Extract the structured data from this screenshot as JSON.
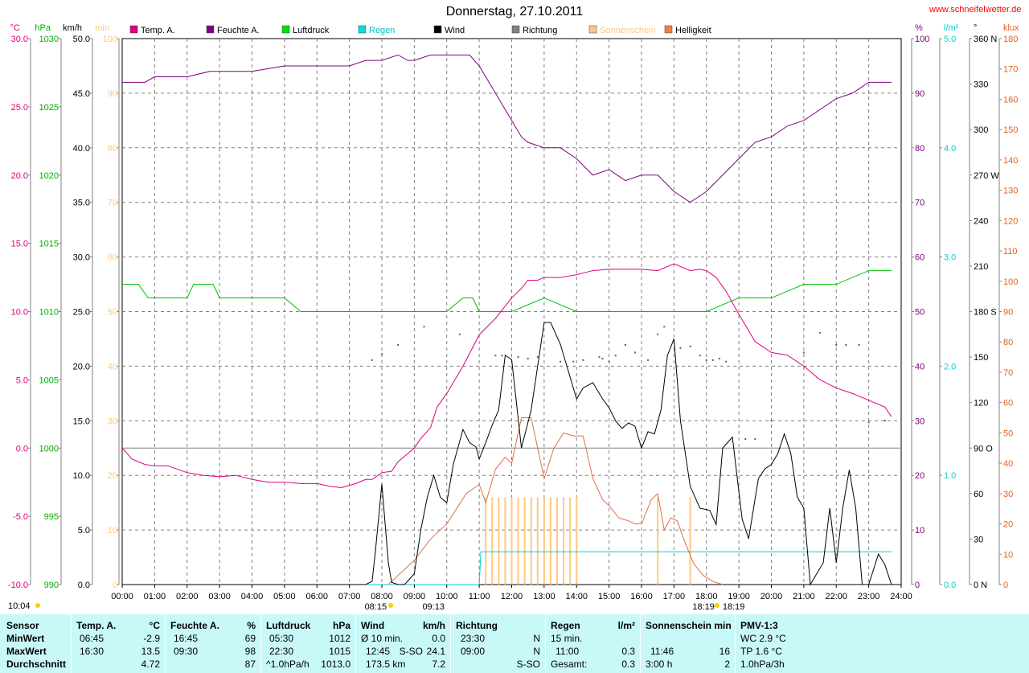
{
  "title": "Donnerstag, 27.10.2011",
  "site": "www.schneifelwetter.de",
  "bottom_left_time": "10:04",
  "chart_data": {
    "type": "line",
    "xlabel": "",
    "x_ticks": [
      "00:00",
      "01:00",
      "02:00",
      "03:00",
      "04:00",
      "05:00",
      "06:00",
      "07:00",
      "08:00",
      "09:00",
      "10:00",
      "11:00",
      "12:00",
      "13:00",
      "14:00",
      "15:00",
      "16:00",
      "17:00",
      "18:00",
      "19:00",
      "20:00",
      "21:00",
      "22:00",
      "23:00",
      "24:00"
    ],
    "sunrise": "08:15",
    "sunset": "18:19",
    "sun_marker_09": "09:13",
    "sun_marker_18": "18:19",
    "axes": {
      "temp": {
        "unit": "°C",
        "color": "#e00080",
        "range": [
          -10,
          30
        ],
        "ticks": [
          "30.0",
          "25.0",
          "20.0",
          "15.0",
          "10.0",
          "5.0",
          "0.0",
          "-5.0",
          "-10.0"
        ]
      },
      "pressure": {
        "unit": "hPa",
        "color": "#00b000",
        "range": [
          990,
          1030
        ],
        "ticks": [
          "1030",
          "1025",
          "1020",
          "1015",
          "1010",
          "1005",
          "1000",
          "995",
          "990"
        ]
      },
      "wind": {
        "unit": "km/h",
        "color": "#000000",
        "range": [
          0,
          50
        ],
        "ticks": [
          "50.0",
          "45.0",
          "40.0",
          "35.0",
          "30.0",
          "25.0",
          "20.0",
          "15.0",
          "10.0",
          "5.0",
          "0.0"
        ]
      },
      "sunshine": {
        "unit": "min",
        "color": "#ffc880",
        "range": [
          0,
          100
        ],
        "ticks": [
          "100",
          "90",
          "80",
          "70",
          "60",
          "50",
          "40",
          "30",
          "20",
          "10",
          "0"
        ]
      },
      "humidity": {
        "unit": "%",
        "color": "#800080",
        "range": [
          0,
          100
        ],
        "ticks": [
          "100",
          "90",
          "80",
          "70",
          "60",
          "50",
          "40",
          "30",
          "20",
          "10",
          "0"
        ]
      },
      "rain": {
        "unit": "l/m²",
        "color": "#00d0d0",
        "range": [
          0,
          5
        ],
        "ticks": [
          "5.0",
          "4.0",
          "3.0",
          "2.0",
          "1.0",
          "0.0"
        ]
      },
      "direction": {
        "unit": "°",
        "color": "#000000",
        "range": [
          0,
          360
        ],
        "ticks": [
          "360 N",
          "330",
          "300",
          "270 W",
          "240",
          "210",
          "180 S",
          "150",
          "120",
          "90 O",
          "60",
          "30",
          "0 N"
        ]
      },
      "light": {
        "unit": "klux",
        "color": "#e06020",
        "range": [
          0,
          180
        ],
        "ticks": [
          "180",
          "170",
          "160",
          "150",
          "140",
          "130",
          "120",
          "110",
          "100",
          "90",
          "80",
          "70",
          "60",
          "50",
          "40",
          "30",
          "20",
          "10",
          "0"
        ]
      }
    },
    "legend": [
      {
        "name": "Temp. A.",
        "color": "#e00080"
      },
      {
        "name": "Feuchte A.",
        "color": "#800080"
      },
      {
        "name": "Luftdruck",
        "color": "#00e000"
      },
      {
        "name": "Regen",
        "color": "#00e0e0"
      },
      {
        "name": "Wind",
        "color": "#000000"
      },
      {
        "name": "Richtung",
        "color": "#808080"
      },
      {
        "name": "Sonnenschein",
        "color": "#ffc880"
      },
      {
        "name": "Helligkeit",
        "color": "#f08050"
      }
    ],
    "series": {
      "temperature": {
        "x": [
          0,
          0.3,
          0.7,
          1,
          1.4,
          2,
          2.5,
          3,
          3.5,
          4,
          4.5,
          5,
          5.5,
          6,
          6.4,
          6.75,
          7.2,
          7.5,
          7.7,
          8,
          8.3,
          8.5,
          8.8,
          9,
          9.2,
          9.5,
          9.7,
          10,
          10.5,
          11,
          11.5,
          12,
          12.3,
          12.5,
          12.8,
          13,
          13.2,
          13.5,
          14,
          14.5,
          15,
          15.5,
          16,
          16.5,
          17,
          17.5,
          17.8,
          18,
          18.3,
          18.6,
          19,
          19.5,
          20,
          20.5,
          21,
          21.5,
          22,
          22.5,
          23,
          23.5,
          23.7
        ],
        "y": [
          0.0,
          -0.8,
          -1.2,
          -1.3,
          -1.3,
          -1.8,
          -2.0,
          -2.1,
          -2.0,
          -2.3,
          -2.5,
          -2.5,
          -2.6,
          -2.6,
          -2.8,
          -2.9,
          -2.6,
          -2.3,
          -2.3,
          -1.8,
          -1.7,
          -1.0,
          -0.4,
          0.0,
          0.7,
          1.5,
          3.0,
          4.0,
          6.0,
          8.3,
          9.5,
          11.0,
          11.7,
          12.3,
          12.3,
          12.5,
          12.5,
          12.5,
          12.7,
          13.0,
          13.1,
          13.1,
          13.1,
          13.0,
          13.5,
          13.0,
          13.1,
          13.0,
          12.5,
          11.5,
          9.8,
          7.8,
          7.0,
          6.8,
          6.0,
          5.0,
          4.4,
          4.0,
          3.5,
          3.0,
          2.3
        ]
      },
      "humidity": {
        "x": [
          0,
          0.7,
          1,
          2,
          2.7,
          3,
          4,
          5,
          6,
          7,
          7.5,
          8,
          8.5,
          8.8,
          9,
          9.5,
          9.8,
          10,
          10.7,
          11,
          11.5,
          12,
          12.3,
          12.5,
          13,
          13.5,
          14,
          14.5,
          15,
          15.5,
          16,
          16.5,
          17,
          17.5,
          18,
          18.5,
          19,
          19.5,
          20,
          20.5,
          21,
          21.5,
          22,
          22.5,
          23,
          23.7
        ],
        "y": [
          92,
          92,
          93,
          93,
          94,
          94,
          94,
          95,
          95,
          95,
          96,
          96,
          97,
          96,
          96,
          97,
          97,
          97,
          97,
          95,
          90,
          85,
          82,
          81,
          80,
          80,
          78,
          75,
          76,
          74,
          75,
          75,
          72,
          70,
          72,
          75,
          78,
          81,
          82,
          84,
          85,
          87,
          89,
          90,
          92,
          92
        ]
      },
      "pressure": {
        "x": [
          0,
          0.5,
          0.8,
          2,
          2.2,
          2.8,
          3,
          4.5,
          5,
          5.5,
          6,
          7,
          8,
          9,
          10,
          10.5,
          10.8,
          11,
          12,
          13,
          14,
          15,
          16,
          17,
          18,
          19,
          20,
          21,
          22,
          23,
          23.7
        ],
        "y": [
          1012,
          1012,
          1011,
          1011,
          1012,
          1012,
          1011,
          1011,
          1011,
          1010,
          1010,
          1010,
          1010,
          1010,
          1010,
          1011,
          1011,
          1010,
          1010,
          1011,
          1010,
          1010,
          1010,
          1010,
          1010,
          1011,
          1011,
          1012,
          1012,
          1013,
          1013
        ]
      },
      "wind": {
        "x": [
          0,
          7.3,
          7.5,
          7.7,
          7.8,
          8,
          8.2,
          8.3,
          8.5,
          8.7,
          9,
          9.2,
          9.4,
          9.6,
          9.8,
          10,
          10.2,
          10.5,
          10.7,
          10.9,
          11,
          11.2,
          11.4,
          11.6,
          11.8,
          12,
          12.3,
          12.6,
          12.8,
          13,
          13.2,
          13.5,
          13.8,
          14,
          14.2,
          14.5,
          14.8,
          15,
          15.2,
          15.4,
          15.6,
          15.8,
          16,
          16.2,
          16.4,
          16.6,
          16.8,
          17,
          17.2,
          17.5,
          17.8,
          18.1,
          18.3,
          18.5,
          18.8,
          19.1,
          19.3,
          19.6,
          19.8,
          20,
          20.2,
          20.4,
          20.6,
          20.8,
          21,
          21.2,
          21.4,
          21.6,
          21.8,
          22,
          22.2,
          22.4,
          22.6,
          22.8,
          23,
          23.3,
          23.5,
          23.7
        ],
        "y": [
          0,
          0,
          0,
          0.3,
          3,
          9.2,
          2,
          0.2,
          0,
          0,
          1,
          5,
          8,
          10,
          8,
          7.5,
          11,
          14.2,
          13,
          12.6,
          11.5,
          13,
          14.6,
          16,
          21,
          20.6,
          12.5,
          16,
          20,
          24,
          24,
          22,
          19,
          17,
          18,
          18.5,
          17,
          16.2,
          15,
          14.3,
          14.8,
          14.5,
          12.5,
          14,
          13.8,
          16,
          21,
          22.5,
          15,
          9,
          7,
          6.8,
          5.5,
          12.5,
          13.5,
          6,
          4.2,
          9.7,
          10.6,
          11,
          12,
          13.8,
          12,
          8,
          7,
          0,
          1,
          2,
          7,
          2,
          7,
          10.5,
          7,
          0,
          0,
          2.8,
          1.8,
          0
        ]
      },
      "sunshine_min": {
        "x": [
          11.2,
          11.4,
          11.6,
          11.8,
          12,
          12.2,
          12.4,
          12.6,
          12.8,
          13,
          13.2,
          13.4,
          13.6,
          13.8,
          14,
          16.5,
          17.5
        ],
        "y": [
          16,
          16,
          16,
          16,
          16,
          16,
          16,
          16,
          16,
          16,
          16,
          16,
          16,
          16,
          16,
          16,
          16
        ]
      },
      "rain_cum": {
        "x": [
          0,
          11,
          11.05,
          23.7
        ],
        "y": [
          0,
          0,
          0.3,
          0.3
        ]
      },
      "light_klux": {
        "x": [
          8.2,
          8.5,
          9,
          9.5,
          10,
          10.3,
          10.6,
          11,
          11.2,
          11.5,
          11.8,
          12,
          12.3,
          12.6,
          12.8,
          13,
          13.3,
          13.6,
          13.9,
          14.2,
          14.5,
          14.8,
          15,
          15.3,
          15.6,
          15.8,
          16,
          16.3,
          16.5,
          16.7,
          16.9,
          17.1,
          17.3,
          17.6,
          17.9,
          18.2,
          18.5
        ],
        "y": [
          0,
          3,
          8,
          15,
          20,
          25,
          30,
          33,
          27,
          38,
          42,
          40,
          55,
          55,
          45,
          35,
          45,
          50,
          49,
          49,
          35,
          28,
          26,
          22,
          21,
          20,
          20,
          28,
          30,
          18,
          22,
          21,
          15,
          7,
          3,
          1,
          0
        ]
      },
      "direction_pts": {
        "x": [
          7.7,
          8,
          8.5,
          9.3,
          10.4,
          11.5,
          11.7,
          12.2,
          12.5,
          12.8,
          13.5,
          13.9,
          14.2,
          14.7,
          14.8,
          15,
          15.2,
          15.5,
          15.8,
          16.2,
          16.5,
          16.7,
          17.2,
          17.5,
          17.8,
          18,
          18.2,
          18.4,
          18.6,
          19.2,
          19.5,
          20,
          21,
          21.5,
          22,
          22.3,
          22.7,
          23,
          23.5
        ],
        "y": [
          148,
          152,
          158,
          170,
          165,
          151,
          151,
          150,
          149,
          150,
          147,
          147,
          148,
          150,
          149,
          147,
          151,
          158,
          153,
          148,
          165,
          170,
          156,
          157,
          151,
          148,
          148,
          149,
          147,
          96,
          96,
          108,
          153,
          166,
          158,
          158,
          158,
          107,
          108
        ]
      }
    }
  },
  "table": {
    "labels": {
      "sensor": "Sensor",
      "min": "MinWert",
      "max": "MaxWert",
      "avg": "Durchschnitt"
    },
    "temp": {
      "head": "Temp. A.",
      "unit": "°C",
      "min_time": "06:45",
      "min": "-2.9",
      "max_time": "16:30",
      "max": "13.5",
      "avg": "4.72"
    },
    "humidity": {
      "head": "Feuchte A.",
      "unit": "%",
      "min_time": "16:45",
      "min": "69",
      "max_time": "09:30",
      "max": "98",
      "avg": "87"
    },
    "pressure": {
      "head": "Luftdruck",
      "unit": "hPa",
      "min_time": "05:30",
      "min": "1012",
      "max_time": "22:30",
      "max": "1015",
      "avg_label": "^1.0hPa/h",
      "avg": "1013.0"
    },
    "wind": {
      "head": "Wind",
      "unit": "km/h",
      "min_label": "Ø 10 min.",
      "min": "0.0",
      "max_time": "12:45",
      "max_dir": "S-SO",
      "max": "24.1",
      "avg_label": "173.5 km",
      "avg": "7.2"
    },
    "direction": {
      "head": "Richtung",
      "min_time": "23:30",
      "min": "N",
      "max_time": "09:00",
      "max": "N",
      "avg": "S-SO"
    },
    "rain": {
      "head": "Regen",
      "unit": "l/m²",
      "min_label": "15 min.",
      "max_time": "11:00",
      "max": "0.3",
      "avg_label": "Gesamt:",
      "avg": "0.3"
    },
    "sun": {
      "head": "Sonnenschein min",
      "max_time": "11:46",
      "max": "16",
      "avg_label": "3:00 h",
      "avg": "2"
    },
    "pmv": {
      "head": "PMV-1:3",
      "min": "WC 2.9 °C",
      "max": "TP 1.6 °C",
      "avg": "1.0hPa/3h"
    }
  }
}
